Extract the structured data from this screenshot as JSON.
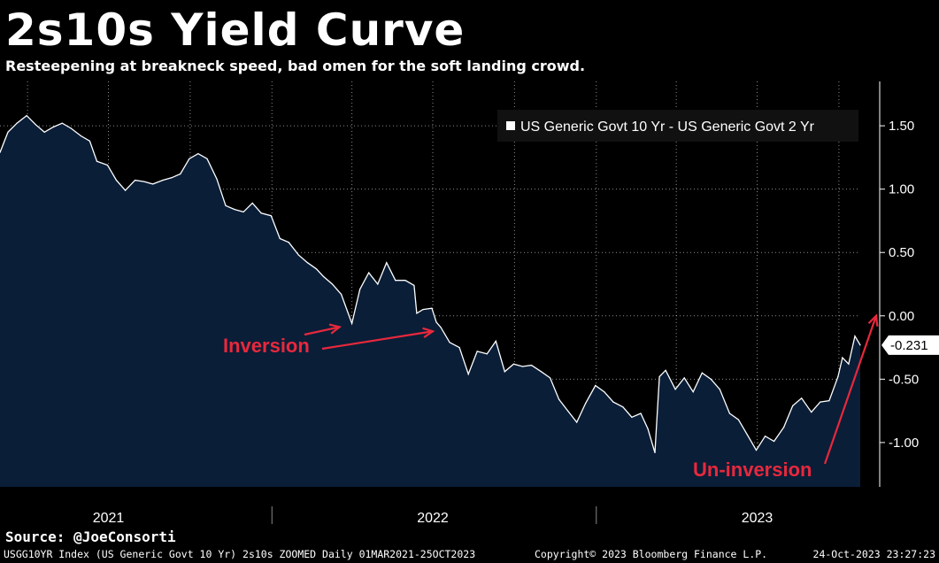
{
  "header": {
    "title": "2s10s Yield Curve",
    "subtitle": "Resteepening at breakneck speed, bad omen for the soft landing crowd."
  },
  "footer": {
    "source": "Source: @JoeConsorti",
    "index_info": "USGG10YR Index (US Generic Govt 10 Yr) 2s10s ZOOMED  Daily 01MAR2021-25OCT2023",
    "copyright": "Copyright© 2023 Bloomberg Finance L.P.",
    "timestamp": "24-Oct-2023 23:27:23"
  },
  "colors": {
    "background": "#000000",
    "area_fill": "#0a1e38",
    "line": "#ffffff",
    "annotation": "#e8283c",
    "grid": "#ffffff"
  },
  "chart_data": {
    "type": "area",
    "legend": "US Generic Govt 10 Yr - US Generic Govt 2 Yr",
    "legend_placement": "top-right",
    "grid": true,
    "y_axis_side": "right",
    "ylim": [
      -1.35,
      1.85
    ],
    "yticks": [
      1.5,
      1.0,
      0.5,
      0.0,
      -0.5,
      -1.0
    ],
    "ytick_labels": [
      "1.50",
      "1.00",
      "0.50",
      "0.00",
      "-0.50",
      "-1.00"
    ],
    "xlim": [
      "2021-03-01",
      "2023-10-25"
    ],
    "year_labels": [
      {
        "label": "2021",
        "date": "2021-07-01"
      },
      {
        "label": "2022",
        "date": "2022-07-01"
      },
      {
        "label": "2023",
        "date": "2023-07-01"
      }
    ],
    "last_value": -0.231,
    "last_value_label": "-0.231",
    "series": [
      {
        "name": "US Generic Govt 10 Yr - US Generic Govt 2 Yr",
        "points": [
          [
            "2021-03-01",
            1.29
          ],
          [
            "2021-03-10",
            1.45
          ],
          [
            "2021-03-20",
            1.52
          ],
          [
            "2021-03-31",
            1.58
          ],
          [
            "2021-04-10",
            1.51
          ],
          [
            "2021-04-20",
            1.45
          ],
          [
            "2021-04-30",
            1.49
          ],
          [
            "2021-05-10",
            1.52
          ],
          [
            "2021-05-20",
            1.48
          ],
          [
            "2021-05-31",
            1.42
          ],
          [
            "2021-06-10",
            1.38
          ],
          [
            "2021-06-18",
            1.22
          ],
          [
            "2021-06-30",
            1.19
          ],
          [
            "2021-07-10",
            1.07
          ],
          [
            "2021-07-20",
            0.99
          ],
          [
            "2021-07-31",
            1.07
          ],
          [
            "2021-08-10",
            1.06
          ],
          [
            "2021-08-20",
            1.04
          ],
          [
            "2021-08-31",
            1.07
          ],
          [
            "2021-09-10",
            1.09
          ],
          [
            "2021-09-20",
            1.12
          ],
          [
            "2021-09-30",
            1.24
          ],
          [
            "2021-10-10",
            1.28
          ],
          [
            "2021-10-20",
            1.24
          ],
          [
            "2021-10-31",
            1.08
          ],
          [
            "2021-11-10",
            0.87
          ],
          [
            "2021-11-20",
            0.84
          ],
          [
            "2021-11-30",
            0.82
          ],
          [
            "2021-12-10",
            0.89
          ],
          [
            "2021-12-20",
            0.81
          ],
          [
            "2021-12-31",
            0.79
          ],
          [
            "2022-01-10",
            0.61
          ],
          [
            "2022-01-20",
            0.58
          ],
          [
            "2022-01-31",
            0.48
          ],
          [
            "2022-02-10",
            0.42
          ],
          [
            "2022-02-20",
            0.37
          ],
          [
            "2022-02-28",
            0.31
          ],
          [
            "2022-03-10",
            0.25
          ],
          [
            "2022-03-20",
            0.17
          ],
          [
            "2022-04-01",
            -0.06
          ],
          [
            "2022-04-10",
            0.21
          ],
          [
            "2022-04-20",
            0.34
          ],
          [
            "2022-04-30",
            0.25
          ],
          [
            "2022-05-10",
            0.42
          ],
          [
            "2022-05-20",
            0.28
          ],
          [
            "2022-05-31",
            0.28
          ],
          [
            "2022-06-10",
            0.24
          ],
          [
            "2022-06-13",
            0.02
          ],
          [
            "2022-06-20",
            0.05
          ],
          [
            "2022-06-30",
            0.06
          ],
          [
            "2022-07-05",
            -0.05
          ],
          [
            "2022-07-10",
            -0.09
          ],
          [
            "2022-07-20",
            -0.21
          ],
          [
            "2022-07-31",
            -0.25
          ],
          [
            "2022-08-10",
            -0.46
          ],
          [
            "2022-08-20",
            -0.28
          ],
          [
            "2022-08-31",
            -0.3
          ],
          [
            "2022-09-10",
            -0.2
          ],
          [
            "2022-09-20",
            -0.44
          ],
          [
            "2022-09-30",
            -0.38
          ],
          [
            "2022-10-10",
            -0.4
          ],
          [
            "2022-10-20",
            -0.39
          ],
          [
            "2022-10-31",
            -0.44
          ],
          [
            "2022-11-10",
            -0.49
          ],
          [
            "2022-11-20",
            -0.66
          ],
          [
            "2022-11-30",
            -0.75
          ],
          [
            "2022-12-10",
            -0.84
          ],
          [
            "2022-12-20",
            -0.69
          ],
          [
            "2022-12-31",
            -0.55
          ],
          [
            "2023-01-10",
            -0.6
          ],
          [
            "2023-01-20",
            -0.68
          ],
          [
            "2023-01-31",
            -0.72
          ],
          [
            "2023-02-10",
            -0.8
          ],
          [
            "2023-02-20",
            -0.77
          ],
          [
            "2023-02-28",
            -0.89
          ],
          [
            "2023-03-08",
            -1.08
          ],
          [
            "2023-03-13",
            -0.48
          ],
          [
            "2023-03-20",
            -0.43
          ],
          [
            "2023-03-31",
            -0.58
          ],
          [
            "2023-04-10",
            -0.49
          ],
          [
            "2023-04-20",
            -0.6
          ],
          [
            "2023-04-30",
            -0.45
          ],
          [
            "2023-05-10",
            -0.5
          ],
          [
            "2023-05-20",
            -0.58
          ],
          [
            "2023-05-31",
            -0.77
          ],
          [
            "2023-06-10",
            -0.82
          ],
          [
            "2023-06-20",
            -0.94
          ],
          [
            "2023-06-30",
            -1.06
          ],
          [
            "2023-07-10",
            -0.95
          ],
          [
            "2023-07-20",
            -0.99
          ],
          [
            "2023-07-31",
            -0.88
          ],
          [
            "2023-08-10",
            -0.71
          ],
          [
            "2023-08-20",
            -0.65
          ],
          [
            "2023-08-31",
            -0.76
          ],
          [
            "2023-09-10",
            -0.68
          ],
          [
            "2023-09-20",
            -0.67
          ],
          [
            "2023-09-30",
            -0.48
          ],
          [
            "2023-10-05",
            -0.33
          ],
          [
            "2023-10-12",
            -0.38
          ],
          [
            "2023-10-19",
            -0.16
          ],
          [
            "2023-10-25",
            -0.231
          ]
        ]
      }
    ],
    "annotations": [
      {
        "label": "Inversion",
        "target_date": "2022-04-01",
        "target_value": -0.06
      },
      {
        "label": "Inversion",
        "target_date": "2022-07-05",
        "target_value": -0.08
      },
      {
        "label": "Un-inversion",
        "target_date": "2023-10-25",
        "target_value": 0.0
      }
    ]
  }
}
